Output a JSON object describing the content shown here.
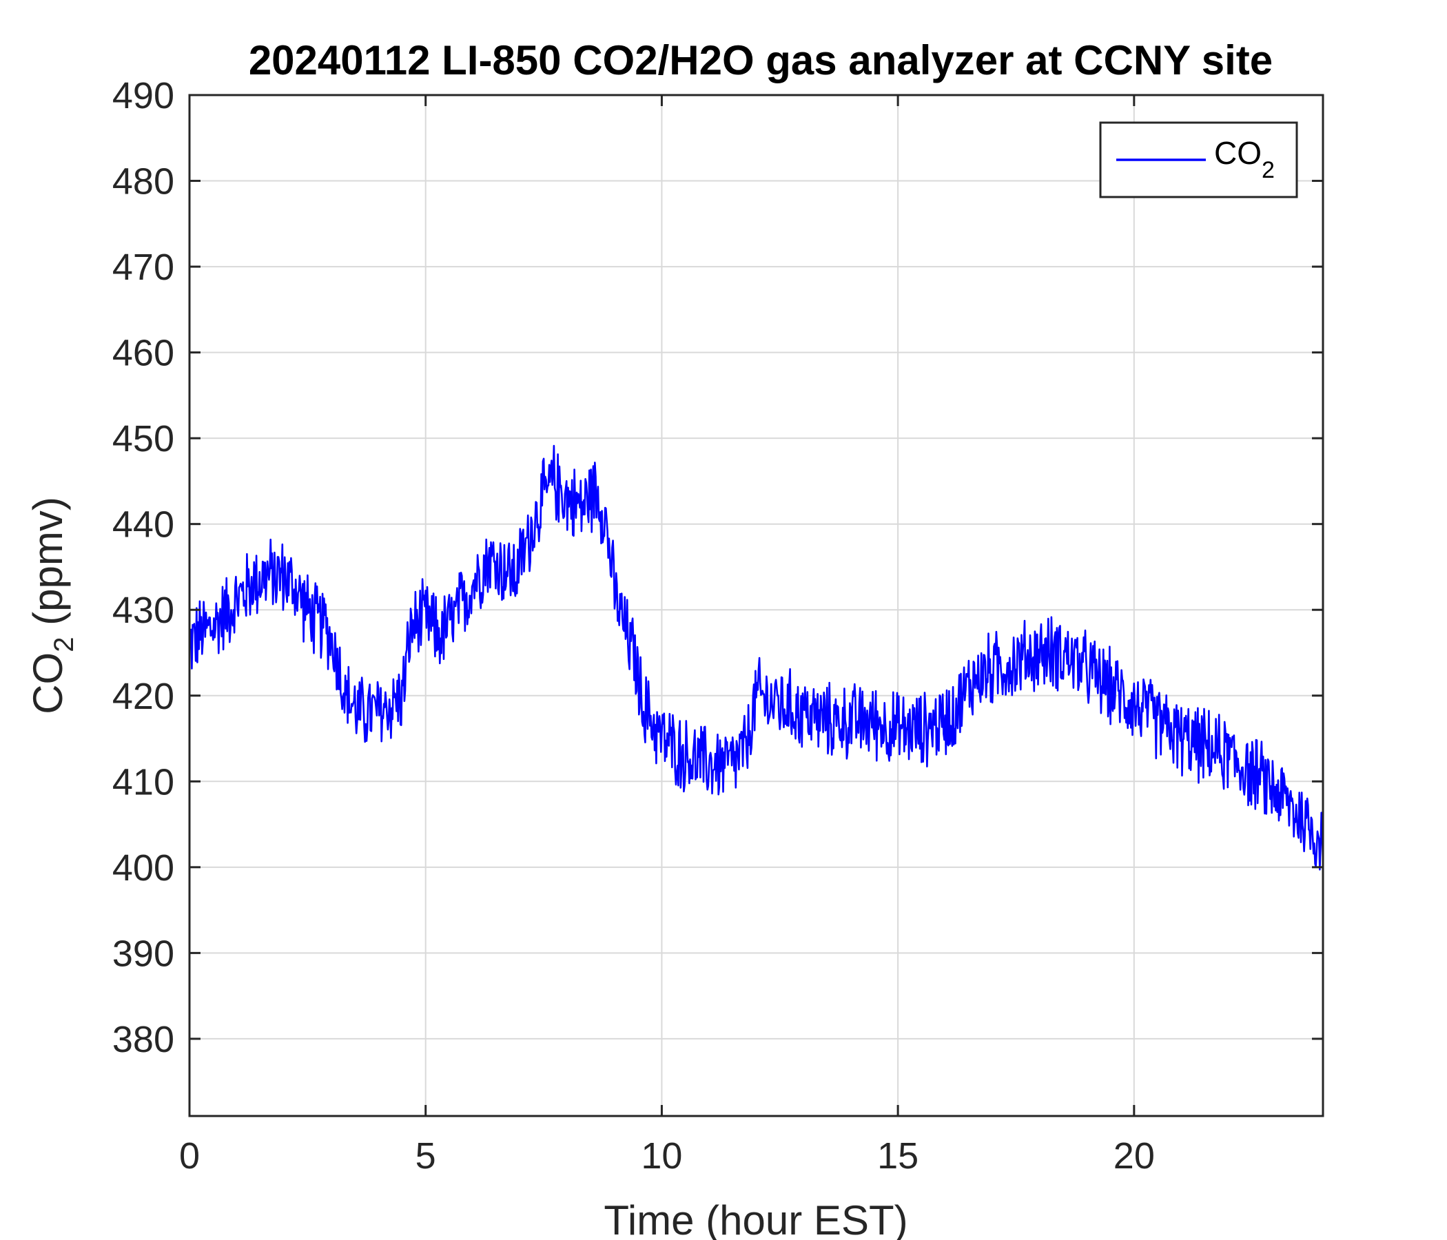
{
  "chart_data": {
    "type": "line",
    "title": "20240112 LI-850 CO2/H2O gas analyzer at CCNY site",
    "xlabel": "Time (hour EST)",
    "ylabel": {
      "base": "CO",
      "subscript": "2",
      "suffix": " (ppmv)"
    },
    "xlim": [
      0,
      24
    ],
    "ylim": [
      371,
      490
    ],
    "xticks": [
      0,
      5,
      10,
      15,
      20
    ],
    "yticks": [
      380,
      390,
      400,
      410,
      420,
      430,
      440,
      450,
      460,
      470,
      480,
      490
    ],
    "grid": true,
    "legend_position": "top-right",
    "series": [
      {
        "name": {
          "base": "CO",
          "subscript": "2"
        },
        "color": "#0000ff",
        "noise_amplitude": 5,
        "x": [
          0,
          0.2,
          0.5,
          0.8,
          1.0,
          1.3,
          1.6,
          2.0,
          2.3,
          2.6,
          2.9,
          3.1,
          3.3,
          3.6,
          4.0,
          4.3,
          4.5,
          4.7,
          5.0,
          5.3,
          5.6,
          6.0,
          6.3,
          6.6,
          6.9,
          7.1,
          7.4,
          7.7,
          8.0,
          8.3,
          8.6,
          8.8,
          9.0,
          9.2,
          9.4,
          9.6,
          10.0,
          10.5,
          11.0,
          11.5,
          11.8,
          12.0,
          12.5,
          13.0,
          13.5,
          14.0,
          14.5,
          15.0,
          15.5,
          16.0,
          16.3,
          16.6,
          17.0,
          17.5,
          18.0,
          18.5,
          19.0,
          19.5,
          20.0,
          20.5,
          21.0,
          21.5,
          22.0,
          22.5,
          23.0,
          23.5,
          24.0
        ],
        "y": [
          426,
          427,
          428,
          430,
          431,
          433,
          434,
          434,
          432,
          429,
          428,
          425,
          420,
          418,
          418,
          419,
          420,
          428,
          429,
          427,
          429,
          433,
          436,
          435,
          434,
          437,
          442,
          445,
          443,
          442,
          444,
          441,
          432,
          428,
          425,
          419,
          415,
          413,
          412,
          412,
          414,
          420,
          419,
          418,
          417,
          417,
          417,
          416,
          416,
          417,
          419,
          422,
          423,
          424,
          425,
          425,
          423,
          421,
          419,
          417,
          415,
          414,
          413,
          411,
          409,
          406,
          403
        ]
      }
    ]
  }
}
